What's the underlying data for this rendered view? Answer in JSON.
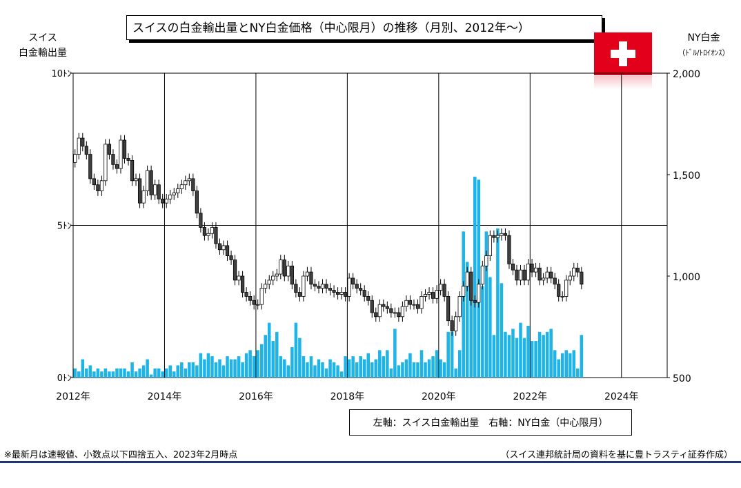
{
  "title": "スイスの白金輸出量とNY白金価格（中心限月）の推移（月別、2012年～）",
  "left_axis": {
    "title_line1": "スイス",
    "title_line2": "白金輸出量",
    "ticks": [
      "10ﾄﾝ",
      "5ﾄﾝ",
      "0ﾄﾝ"
    ]
  },
  "right_axis": {
    "title_line1": "NY白金",
    "title_line2": "（ﾄﾞﾙ/ﾄﾛｲｵﾝｽ）",
    "ticks": [
      "2,000",
      "1,500",
      "1,000",
      "500"
    ]
  },
  "legend": "左軸：スイス白金輸出量　右軸：NY白金（中心限月）",
  "note_left": "※最新月は速報値、小数点以下四捨五入、2023年2月時点",
  "note_right": "（スイス連邦統計局の資料を基に豊トラスティ証券作成）",
  "colors": {
    "bar": "#1eb4e8",
    "candle_up": "#ffffff",
    "candle_down": "#404040",
    "flag": "#e3001b"
  },
  "chart_data": {
    "type": "bar+candlestick",
    "title": "スイスの白金輸出量とNY白金価格（中心限月）の推移（月別、2012年～）",
    "x_ticks": [
      "2012年",
      "2014年",
      "2016年",
      "2018年",
      "2020年",
      "2022年",
      "2024年"
    ],
    "x_range": [
      "2012-01",
      "2025-01"
    ],
    "left_ylim": [
      0,
      10
    ],
    "right_ylim": [
      500,
      2000
    ],
    "exports_start": "2012-01",
    "exports_tonnes": [
      0.3,
      0.2,
      0.6,
      0.3,
      0.4,
      0.2,
      0.3,
      0.2,
      0.3,
      0.2,
      0.2,
      0.3,
      0.3,
      0.3,
      0.2,
      0.5,
      0.2,
      0.3,
      0.4,
      0.6,
      0.1,
      0.3,
      0.3,
      0.2,
      0.3,
      0.4,
      0.2,
      0.4,
      0.5,
      0.3,
      0.5,
      0.5,
      0.4,
      0.8,
      0.6,
      0.8,
      0.7,
      0.5,
      0.6,
      0.4,
      0.7,
      0.6,
      0.6,
      0.7,
      0.5,
      0.8,
      0.9,
      0.7,
      0.9,
      1.1,
      1.4,
      1.8,
      1.2,
      1.5,
      0.7,
      0.6,
      0.4,
      1.0,
      1.8,
      1.3,
      0.7,
      0.5,
      0.7,
      0.4,
      0.6,
      0.5,
      0.3,
      0.6,
      0.5,
      0.4,
      0.2,
      0.7,
      0.6,
      0.7,
      0.5,
      0.7,
      0.6,
      0.8,
      0.5,
      0.6,
      0.9,
      0.7,
      0.9,
      0.3,
      1.6,
      0.4,
      0.5,
      0.6,
      0.8,
      0.5,
      0.5,
      0.9,
      0.5,
      0.6,
      0.7,
      0.9,
      0.6,
      0.5,
      1.5,
      1.5,
      0.3,
      0.9,
      4.8,
      3.8,
      3.2,
      6.6,
      6.5,
      3.0,
      4.8,
      3.3,
      1.4,
      4.9,
      3.1,
      1.5,
      1.4,
      1.6,
      1.3,
      1.8,
      1.3,
      1.7,
      1.2,
      1.2,
      1.5,
      1.4,
      1.5,
      1.6,
      0.9,
      0.6,
      0.8,
      0.9,
      0.8,
      0.9,
      0.3,
      1.4
    ],
    "price_start": "2012-01",
    "price_close": [
      1600,
      1680,
      1640,
      1600,
      1480,
      1450,
      1420,
      1470,
      1650,
      1600,
      1550,
      1530,
      1670,
      1580,
      1570,
      1470,
      1480,
      1360,
      1420,
      1520,
      1400,
      1450,
      1380,
      1360,
      1380,
      1400,
      1410,
      1430,
      1450,
      1470,
      1480,
      1420,
      1310,
      1240,
      1200,
      1210,
      1240,
      1160,
      1130,
      1150,
      1100,
      1080,
      980,
      1000,
      920,
      900,
      880,
      860,
      860,
      940,
      960,
      980,
      1000,
      1010,
      1080,
      1000,
      1050,
      960,
      920,
      900,
      1000,
      1020,
      960,
      950,
      940,
      960,
      940,
      930,
      920,
      910,
      920,
      900,
      990,
      960,
      940,
      930,
      900,
      880,
      820,
      800,
      860,
      850,
      840,
      820,
      820,
      800,
      850,
      880,
      860,
      860,
      840,
      900,
      910,
      920,
      890,
      930,
      960,
      900,
      780,
      730,
      800,
      900,
      950,
      1020,
      880,
      870,
      960,
      1050,
      1100,
      1200,
      1190,
      1200,
      1210,
      1200,
      1060,
      1030,
      980,
      1030,
      980,
      1060,
      1020,
      1040,
      980,
      990,
      1020,
      990,
      960,
      900,
      900,
      980,
      1000,
      1040,
      1020,
      960
    ]
  }
}
